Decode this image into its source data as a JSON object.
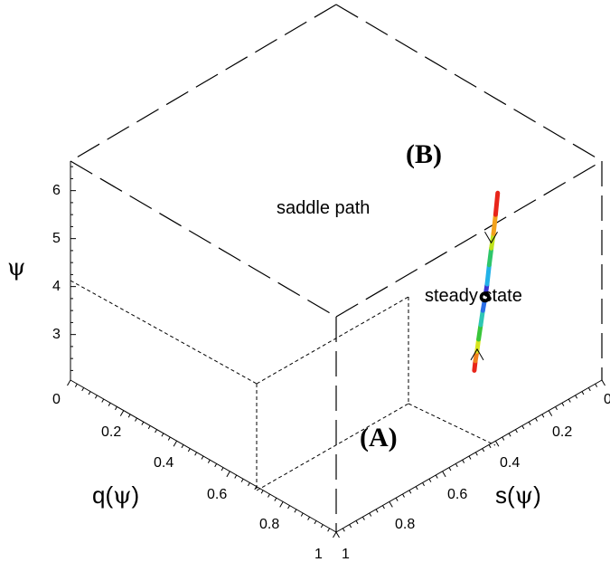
{
  "chart_data": {
    "type": "line3d",
    "title": "",
    "axes": {
      "q": {
        "label_main": "q(",
        "label_sym": "ψ",
        "label_end": ")",
        "ticks": [
          "0",
          "0.2",
          "0.4",
          "0.6",
          "0.8",
          "1"
        ],
        "range": [
          0,
          1
        ]
      },
      "s": {
        "label_main": "s(",
        "label_sym": "ψ",
        "label_end": ")",
        "ticks": [
          "0",
          "0.2",
          "0.4",
          "0.6",
          "0.8",
          "1"
        ],
        "range": [
          0,
          1
        ]
      },
      "psi": {
        "label": "ψ",
        "ticks": [
          "3",
          "4",
          "5",
          "6"
        ],
        "range": [
          2,
          6.5
        ]
      }
    },
    "annotations": {
      "saddle_path": "saddle path",
      "steady_state": "steady state",
      "point_a": "(A)",
      "point_b": "(B)"
    },
    "saddle_path": [
      {
        "q": 0.76,
        "s": 0.24,
        "psi": 2.25,
        "color": "#e8251a"
      },
      {
        "q": 0.762,
        "s": 0.238,
        "psi": 2.45,
        "color": "#f07f1c"
      },
      {
        "q": 0.765,
        "s": 0.235,
        "psi": 2.65,
        "color": "#d8e41c"
      },
      {
        "q": 0.768,
        "s": 0.232,
        "psi": 2.9,
        "color": "#39c63a"
      },
      {
        "q": 0.772,
        "s": 0.228,
        "psi": 3.2,
        "color": "#2ec6b4"
      },
      {
        "q": 0.776,
        "s": 0.224,
        "psi": 3.5,
        "color": "#2b6ee6"
      },
      {
        "q": 0.78,
        "s": 0.22,
        "psi": 3.75,
        "color": "#3b35d2"
      },
      {
        "q": 0.784,
        "s": 0.216,
        "psi": 4.05,
        "color": "#22b2e8"
      },
      {
        "q": 0.788,
        "s": 0.212,
        "psi": 4.45,
        "color": "#2ec66a"
      },
      {
        "q": 0.792,
        "s": 0.208,
        "psi": 4.8,
        "color": "#bfe21c"
      },
      {
        "q": 0.796,
        "s": 0.204,
        "psi": 5.1,
        "color": "#f3a21c"
      },
      {
        "q": 0.8,
        "s": 0.2,
        "psi": 5.5,
        "color": "#e8251a"
      },
      {
        "q": 0.804,
        "s": 0.196,
        "psi": 5.95,
        "color": "#e8251a"
      }
    ],
    "steady_state": {
      "q": 0.78,
      "s": 0.22,
      "psi": 3.78
    },
    "arrows": [
      {
        "position": 0.12,
        "direction": "up"
      },
      {
        "position": 0.72,
        "direction": "down"
      }
    ]
  }
}
